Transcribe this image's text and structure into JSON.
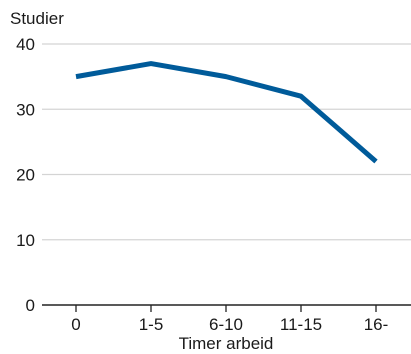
{
  "chart_data": {
    "type": "line",
    "title": "",
    "ylabel": "Studier",
    "xlabel": "Timer arbeid",
    "categories": [
      "0",
      "1-5",
      "6-10",
      "11-15",
      "16-"
    ],
    "series": [
      {
        "values": [
          35,
          37,
          35,
          32,
          22
        ]
      }
    ],
    "ylim": [
      0,
      40
    ],
    "yticks": [
      "0",
      "10",
      "20",
      "30",
      "40"
    ],
    "grid": "horizontal",
    "legend": "none",
    "colors": {
      "line": "#005b9a",
      "grid": "#d4d4d4",
      "axis": "#222222"
    }
  }
}
